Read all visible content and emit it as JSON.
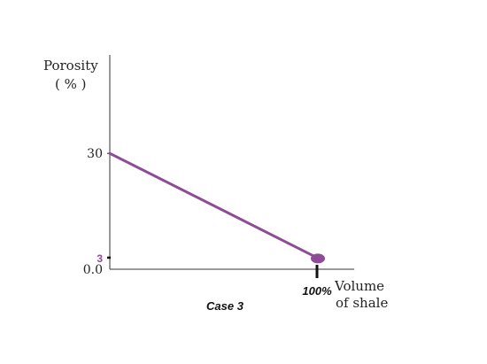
{
  "chart_data": {
    "type": "line",
    "title": "",
    "caption": "Case 3",
    "ylabel_line1": "Porosity",
    "ylabel_line2": "( % )",
    "xlabel_line1": "Volume",
    "xlabel_line2": "of shale",
    "y_ticks": [
      {
        "label": "30",
        "value": 30
      },
      {
        "label": "3",
        "value": 3
      },
      {
        "label": "0.0",
        "value": 0
      }
    ],
    "x_ticks": [
      {
        "label": "100%",
        "value": 100
      }
    ],
    "xlim": [
      0,
      115
    ],
    "ylim": [
      0,
      45
    ],
    "series": [
      {
        "x": [
          0,
          100
        ],
        "y": [
          30,
          3
        ]
      }
    ],
    "colors": {
      "line": "#8e4b96",
      "marker": "#8e4b96",
      "tick_label_3": "#8e4b96",
      "axes": "#333333"
    }
  }
}
